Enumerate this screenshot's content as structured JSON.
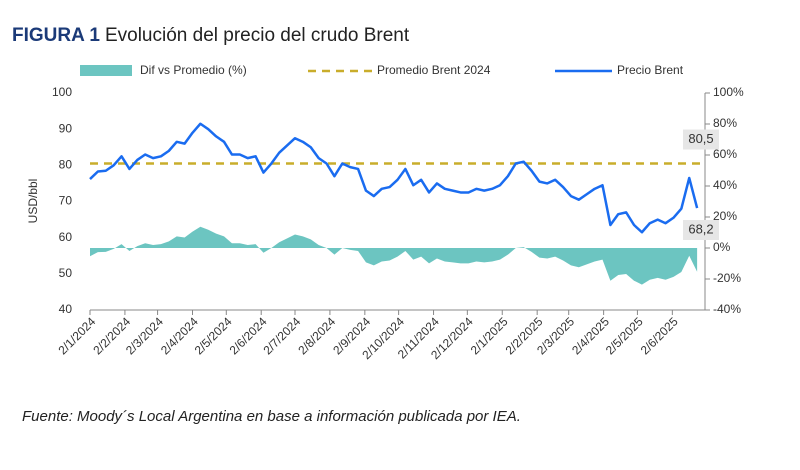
{
  "chart_data": {
    "type": "line",
    "title_label": "FIGURA 1",
    "title": "Evolución del precio del crudo Brent",
    "ylabel": "USD/bbl",
    "x": [
      "2/1/2024",
      "9/1/2024",
      "16/1/2024",
      "23/1/2024",
      "30/1/2024",
      "6/2/2024",
      "13/2/2024",
      "20/2/2024",
      "27/2/2024",
      "5/3/2024",
      "12/3/2024",
      "19/3/2024",
      "26/3/2024",
      "2/4/2024",
      "9/4/2024",
      "16/4/2024",
      "23/4/2024",
      "30/4/2024",
      "7/5/2024",
      "14/5/2024",
      "21/5/2024",
      "28/5/2024",
      "4/6/2024",
      "11/6/2024",
      "18/6/2024",
      "25/6/2024",
      "2/7/2024",
      "9/7/2024",
      "16/7/2024",
      "23/7/2024",
      "30/7/2024",
      "6/8/2024",
      "13/8/2024",
      "20/8/2024",
      "27/8/2024",
      "3/9/2024",
      "10/9/2024",
      "17/9/2024",
      "24/9/2024",
      "1/10/2024",
      "8/10/2024",
      "15/10/2024",
      "22/10/2024",
      "29/10/2024",
      "5/11/2024",
      "12/11/2024",
      "19/11/2024",
      "26/11/2024",
      "3/12/2024",
      "10/12/2024",
      "17/12/2024",
      "24/12/2024",
      "31/12/2024",
      "7/1/2025",
      "14/1/2025",
      "21/1/2025",
      "28/1/2025",
      "4/2/2025",
      "11/2/2025",
      "18/2/2025",
      "25/2/2025",
      "4/3/2025",
      "11/3/2025",
      "18/3/2025",
      "25/3/2025",
      "1/4/2025",
      "8/4/2025",
      "15/4/2025",
      "22/4/2025",
      "29/4/2025",
      "6/5/2025",
      "13/5/2025",
      "20/5/2025",
      "27/5/2025",
      "3/6/2025",
      "10/6/2025",
      "17/6/2025",
      "24/6/2025"
    ],
    "series": [
      {
        "name": "Dif vs Promedio (%)",
        "color": "#6cc5c1",
        "axis": "y2",
        "kind": "area",
        "values": [
          -5.3,
          -2.7,
          -2.5,
          -0.6,
          2.5,
          -1.9,
          1.2,
          3.1,
          1.9,
          2.5,
          4.3,
          7.5,
          6.8,
          10.6,
          13.7,
          11.8,
          9.3,
          7.5,
          3.1,
          3.1,
          1.9,
          2.5,
          -3.1,
          0,
          3.7,
          6.2,
          8.7,
          7.5,
          5.6,
          1.9,
          0,
          -4.3,
          0,
          -1.2,
          -1.9,
          -9.3,
          -11.2,
          -8.7,
          -8.1,
          -5.6,
          -1.9,
          -7.5,
          -5.6,
          -9.9,
          -6.8,
          -8.7,
          -9.3,
          -9.9,
          -9.9,
          -8.7,
          -9.3,
          -8.7,
          -7.5,
          -4.3,
          0,
          0.6,
          -2.5,
          -6.2,
          -6.8,
          -5.6,
          -8.1,
          -11.2,
          -12.4,
          -10.6,
          -8.7,
          -7.5,
          -21.1,
          -17.4,
          -16.8,
          -21.1,
          -23.6,
          -20.5,
          -19.3,
          -20.5,
          -18.6,
          -15.5,
          -5.0,
          -15.3
        ]
      },
      {
        "name": "Precio Brent",
        "color": "#1a6cf0",
        "kind": "line",
        "values": [
          76.2,
          78.3,
          78.5,
          80.0,
          82.5,
          79.0,
          81.5,
          83.0,
          82.0,
          82.5,
          84.0,
          86.5,
          86.0,
          89.0,
          91.5,
          90.0,
          88.0,
          86.5,
          83.0,
          83.0,
          82.0,
          82.5,
          78.0,
          80.5,
          83.5,
          85.5,
          87.5,
          86.5,
          85.0,
          82.0,
          80.5,
          77.0,
          80.5,
          79.5,
          79.0,
          73.0,
          71.5,
          73.5,
          74.0,
          76.0,
          79.0,
          74.5,
          76.0,
          72.5,
          75.0,
          73.5,
          73.0,
          72.5,
          72.5,
          73.5,
          73.0,
          73.5,
          74.5,
          77.0,
          80.5,
          81.0,
          78.5,
          75.5,
          75.0,
          76.0,
          74.0,
          71.5,
          70.5,
          72.0,
          73.5,
          74.5,
          63.5,
          66.5,
          67.0,
          63.5,
          61.5,
          64.0,
          65.0,
          64.0,
          65.5,
          68.0,
          76.5,
          68.2
        ]
      }
    ],
    "average": {
      "name": "Promedio Brent 2024",
      "color": "#c9ad2b",
      "value": 80.5
    },
    "annotations": [
      {
        "text": "80,5",
        "value": 80.5
      },
      {
        "text": "68,2",
        "value": 68.2
      }
    ],
    "xlim": [
      "2/1/2024",
      "1/7/2025"
    ],
    "xticks": [
      "2/1/2024",
      "2/2/2024",
      "2/3/2024",
      "2/4/2024",
      "2/5/2024",
      "2/6/2024",
      "2/7/2024",
      "2/8/2024",
      "2/9/2024",
      "2/10/2024",
      "2/11/2024",
      "2/12/2024",
      "2/1/2025",
      "2/2/2025",
      "2/3/2025",
      "2/4/2025",
      "2/5/2025",
      "2/6/2025"
    ],
    "ylim": [
      40,
      100
    ],
    "yticks": [
      40,
      50,
      60,
      70,
      80,
      90,
      100
    ],
    "y2lim": [
      -40,
      100
    ],
    "y2ticks": [
      {
        "value": -40,
        "label": "-40%"
      },
      {
        "value": -20,
        "label": "-20%"
      },
      {
        "value": 0,
        "label": "0%"
      },
      {
        "value": 20,
        "label": "20%"
      },
      {
        "value": 40,
        "label": "40%"
      },
      {
        "value": 60,
        "label": "60%"
      },
      {
        "value": 80,
        "label": "80%"
      },
      {
        "value": 100,
        "label": "100%"
      }
    ],
    "source": "Fuente: Moody´s Local Argentina en base a información publicada por IEA."
  }
}
